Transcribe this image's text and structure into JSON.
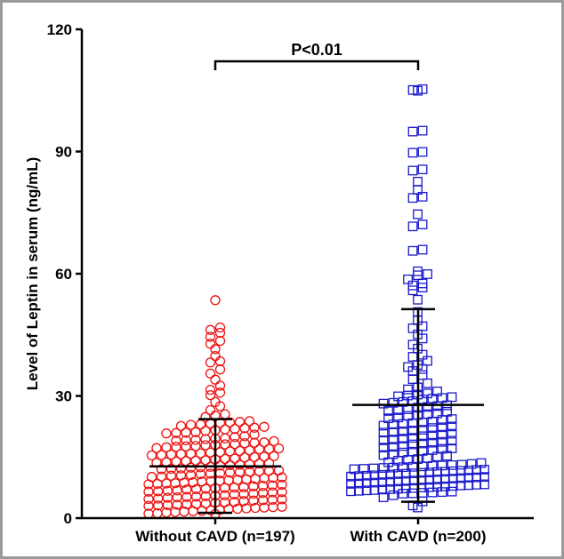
{
  "chart_data": {
    "type": "scatter",
    "title": "",
    "ylabel": "Level of Leptin in serum (ng/mL)",
    "ylim": [
      0,
      120
    ],
    "yticks": [
      0,
      30,
      60,
      90,
      120
    ],
    "grid": false,
    "categories": [
      "Without CAVD (n=197)",
      "With CAVD (n=200)"
    ],
    "significance": {
      "label": "P<0.01",
      "between": [
        0,
        1
      ]
    },
    "series": [
      {
        "category": "Without CAVD (n=197)",
        "marker": "circle",
        "color": "#ee1111",
        "mean": 12.7,
        "sd_lower": 1.3,
        "sd_upper": 24.3,
        "values": [
          53.5,
          46.8,
          46.2,
          45.5,
          44.5,
          43.5,
          42.8,
          41.5,
          39.8,
          38.5,
          38.2,
          36.5,
          35.5,
          34.0,
          32.5,
          31.5,
          30.8,
          30.2,
          28.5,
          27.5,
          26.5,
          25.5,
          25.2,
          24.8,
          23.8,
          23.6,
          23.5,
          23.4,
          23.2,
          23.0,
          22.6,
          22.4,
          22.2,
          21.8,
          21.6,
          21.4,
          21.0,
          20.8,
          20.5,
          19.6,
          19.4,
          19.2,
          19.0,
          18.6,
          18.4,
          18.2,
          18.0,
          17.6,
          17.4,
          17.2,
          17.0,
          16.6,
          16.4,
          16.2,
          15.8,
          15.6,
          15.4,
          15.2,
          15.0,
          14.6,
          14.4,
          14.2,
          14.0,
          13.6,
          13.4,
          13.2,
          13.0,
          12.6,
          12.4,
          12.2,
          12.0,
          11.6,
          11.4,
          11.2,
          11.0,
          10.8,
          10.6,
          10.4,
          10.2,
          10.0,
          9.8,
          9.6,
          9.4,
          9.2,
          9.0,
          8.8,
          8.6,
          8.4,
          8.2,
          8.0,
          7.8,
          7.6,
          7.4,
          7.2,
          7.0,
          6.8,
          6.6,
          6.4,
          6.2,
          6.0,
          5.8,
          5.6,
          5.4,
          5.2,
          5.0,
          4.8,
          4.6,
          4.4,
          4.2,
          4.0,
          3.8,
          3.6,
          3.4,
          3.2,
          3.0,
          2.8,
          2.6,
          2.4,
          2.2,
          2.0,
          1.8,
          1.6,
          1.4,
          1.2,
          1.0,
          9.9,
          9.5,
          9.1,
          8.7,
          8.3,
          7.9,
          7.5,
          7.1,
          6.7,
          6.3,
          5.9,
          5.5,
          5.1,
          4.7,
          4.3,
          3.9,
          3.5,
          3.1,
          2.7,
          2.3,
          1.9,
          1.5,
          1.1,
          12.9,
          12.5,
          12.1,
          11.7,
          11.3,
          10.9,
          10.5,
          10.1,
          13.9,
          13.5,
          13.1,
          14.9,
          14.5,
          14.1,
          15.9,
          15.5,
          15.1,
          16.9,
          16.5,
          16.1,
          17.9,
          17.5,
          17.1,
          18.9,
          18.5,
          18.1,
          19.9,
          19.5,
          19.1,
          20.9,
          20.1,
          21.9,
          21.1,
          22.9,
          22.1,
          8.5,
          6.5,
          4.5,
          2.5,
          1.7,
          5.3,
          3.3,
          7.3,
          9.3,
          11.5,
          13.7,
          15.7,
          17.7
        ]
      },
      {
        "category": "With CAVD (n=200)",
        "marker": "square",
        "color": "#1a1acc",
        "mean": 27.8,
        "sd_lower": 4.0,
        "sd_upper": 51.3,
        "values": [
          105.2,
          105.0,
          104.8,
          95.0,
          94.8,
          89.8,
          89.6,
          85.5,
          85.2,
          82.5,
          80.5,
          78.8,
          78.5,
          74.5,
          72.0,
          71.5,
          65.8,
          65.5,
          60.5,
          59.8,
          59.5,
          58.5,
          57.5,
          57.0,
          56.5,
          55.8,
          53.5,
          50.5,
          48.5,
          47.0,
          46.5,
          45.0,
          44.0,
          42.5,
          41.5,
          40.0,
          39.5,
          38.5,
          37.5,
          37.0,
          36.5,
          36.0,
          35.0,
          34.0,
          33.0,
          32.0,
          31.5,
          31.0,
          30.5,
          30.2,
          30.0,
          29.8,
          29.6,
          29.4,
          29.2,
          29.0,
          28.6,
          28.4,
          28.2,
          28.0,
          27.6,
          27.4,
          27.2,
          27.0,
          26.6,
          26.4,
          26.2,
          26.0,
          25.6,
          25.4,
          25.2,
          25.0,
          24.6,
          24.4,
          24.2,
          24.0,
          23.6,
          23.4,
          23.2,
          23.0,
          22.6,
          22.4,
          22.2,
          22.0,
          21.6,
          21.4,
          21.2,
          21.0,
          20.6,
          20.4,
          20.2,
          20.0,
          19.6,
          19.4,
          19.2,
          19.0,
          18.6,
          18.4,
          18.2,
          18.0,
          17.6,
          17.4,
          17.2,
          17.0,
          16.6,
          16.4,
          16.2,
          16.0,
          15.6,
          15.4,
          15.2,
          15.0,
          14.6,
          14.4,
          14.2,
          14.0,
          13.6,
          13.4,
          13.2,
          13.0,
          12.8,
          12.6,
          12.4,
          12.2,
          12.0,
          11.8,
          11.6,
          11.4,
          11.2,
          11.0,
          10.8,
          10.6,
          10.4,
          10.2,
          10.0,
          9.8,
          9.6,
          9.4,
          9.2,
          9.0,
          8.8,
          8.6,
          8.4,
          8.2,
          8.0,
          7.8,
          7.6,
          7.4,
          7.2,
          7.0,
          6.8,
          6.6,
          6.4,
          6.2,
          6.0,
          5.5,
          5.0,
          4.0,
          3.0,
          2.5,
          12.9,
          12.7,
          12.5,
          12.3,
          12.1,
          11.9,
          11.7,
          11.5,
          11.3,
          11.1,
          10.9,
          10.7,
          10.5,
          10.3,
          10.1,
          9.9,
          9.7,
          9.5,
          9.3,
          9.1,
          8.9,
          8.7,
          8.5,
          8.3,
          8.1,
          7.9,
          7.7,
          7.5,
          7.3,
          7.1,
          6.9,
          6.7,
          6.5,
          6.3,
          6.1,
          5.9,
          16.9,
          18.9,
          20.9,
          22.9
        ]
      }
    ]
  }
}
